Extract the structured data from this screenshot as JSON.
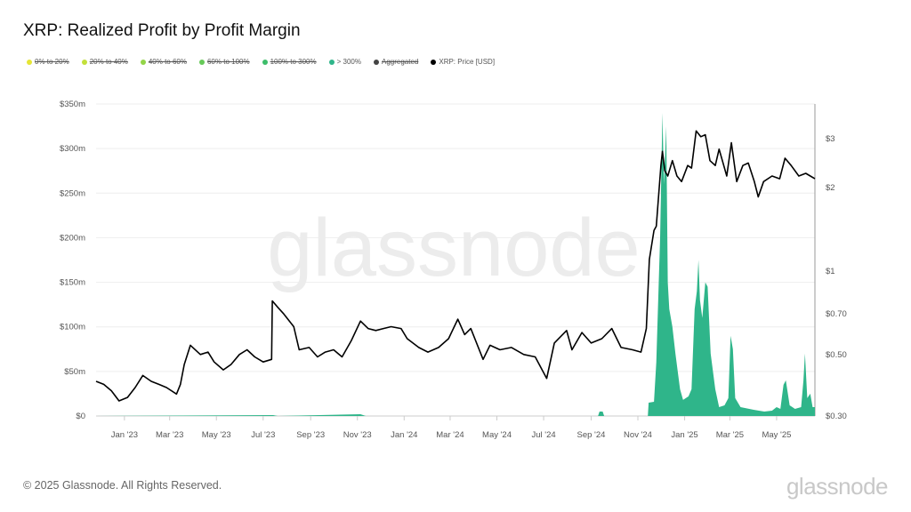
{
  "title": "XRP: Realized Profit by Profit Margin",
  "legend": [
    {
      "label": "0% to 20%",
      "color": "#e6e635",
      "active": false
    },
    {
      "label": "20% to 40%",
      "color": "#c3e03a",
      "active": false
    },
    {
      "label": "40% to 60%",
      "color": "#93d548",
      "active": false
    },
    {
      "label": "60% to 100%",
      "color": "#66c958",
      "active": false
    },
    {
      "label": "100% to 300%",
      "color": "#3dbd6a",
      "active": false
    },
    {
      "label": "> 300%",
      "color": "#2fb58a",
      "active": true
    },
    {
      "label": "Aggregated",
      "color": "#444444",
      "active": false
    },
    {
      "label": "XRP: Price [USD]",
      "color": "#000000",
      "active": true
    }
  ],
  "watermark": "glassnode",
  "footer": "© 2025 Glassnode. All Rights Reserved.",
  "brand": "glassnode",
  "chart_data": {
    "type": "area",
    "title": "XRP: Realized Profit by Profit Margin",
    "x_range": [
      "2022-11-25",
      "2025-06-20"
    ],
    "x_ticks": [
      "Jan '23",
      "Mar '23",
      "May '23",
      "Jul '23",
      "Sep '23",
      "Nov '23",
      "Jan '24",
      "Mar '24",
      "May '24",
      "Jul '24",
      "Sep '24",
      "Nov '24",
      "Jan '25",
      "Mar '25",
      "May '25"
    ],
    "x_tick_dates": [
      "2023-01-01",
      "2023-03-01",
      "2023-05-01",
      "2023-07-01",
      "2023-09-01",
      "2023-11-01",
      "2024-01-01",
      "2024-03-01",
      "2024-05-01",
      "2024-07-01",
      "2024-09-01",
      "2024-11-01",
      "2025-01-01",
      "2025-03-01",
      "2025-05-01"
    ],
    "y_left": {
      "range": [
        0,
        350
      ],
      "unit": "m USD",
      "ticks": [
        "$0",
        "$50m",
        "$100m",
        "$150m",
        "$200m",
        "$250m",
        "$300m",
        "$350m"
      ],
      "tick_values": [
        0,
        50,
        100,
        150,
        200,
        250,
        300,
        350
      ]
    },
    "y_right": {
      "scale": "log",
      "range": [
        0.3,
        3.6
      ],
      "ticks": [
        "$0.30",
        "$0.50",
        "$0.70",
        "$1",
        "$2",
        "$3"
      ],
      "tick_values": [
        0.3,
        0.5,
        0.7,
        1,
        2,
        3
      ]
    },
    "grid": true,
    "series": [
      {
        "name": "> 300%",
        "type": "area",
        "axis": "left",
        "color": "#2fb58a",
        "points": [
          [
            "2022-11-25",
            0
          ],
          [
            "2023-07-14",
            1
          ],
          [
            "2023-07-20",
            0
          ],
          [
            "2023-11-05",
            2
          ],
          [
            "2023-11-12",
            0
          ],
          [
            "2024-09-10",
            0
          ],
          [
            "2024-09-12",
            5
          ],
          [
            "2024-09-16",
            5
          ],
          [
            "2024-09-18",
            0
          ],
          [
            "2024-11-14",
            0
          ],
          [
            "2024-11-15",
            15
          ],
          [
            "2024-11-22",
            16
          ],
          [
            "2024-11-25",
            60
          ],
          [
            "2024-11-30",
            200
          ],
          [
            "2024-12-03",
            340
          ],
          [
            "2024-12-05",
            260
          ],
          [
            "2024-12-08",
            325
          ],
          [
            "2024-12-10",
            150
          ],
          [
            "2024-12-12",
            120
          ],
          [
            "2024-12-16",
            100
          ],
          [
            "2024-12-20",
            70
          ],
          [
            "2024-12-26",
            30
          ],
          [
            "2024-12-30",
            18
          ],
          [
            "2025-01-06",
            22
          ],
          [
            "2025-01-10",
            30
          ],
          [
            "2025-01-14",
            120
          ],
          [
            "2025-01-17",
            140
          ],
          [
            "2025-01-19",
            175
          ],
          [
            "2025-01-21",
            130
          ],
          [
            "2025-01-24",
            110
          ],
          [
            "2025-01-28",
            150
          ],
          [
            "2025-01-31",
            145
          ],
          [
            "2025-02-04",
            70
          ],
          [
            "2025-02-10",
            30
          ],
          [
            "2025-02-15",
            10
          ],
          [
            "2025-02-22",
            12
          ],
          [
            "2025-02-27",
            20
          ],
          [
            "2025-03-02",
            90
          ],
          [
            "2025-03-05",
            75
          ],
          [
            "2025-03-08",
            20
          ],
          [
            "2025-03-15",
            10
          ],
          [
            "2025-04-01",
            7
          ],
          [
            "2025-04-15",
            5
          ],
          [
            "2025-04-25",
            6
          ],
          [
            "2025-05-01",
            10
          ],
          [
            "2025-05-06",
            8
          ],
          [
            "2025-05-10",
            35
          ],
          [
            "2025-05-13",
            40
          ],
          [
            "2025-05-18",
            12
          ],
          [
            "2025-05-25",
            8
          ],
          [
            "2025-06-02",
            10
          ],
          [
            "2025-06-05",
            40
          ],
          [
            "2025-06-07",
            70
          ],
          [
            "2025-06-10",
            20
          ],
          [
            "2025-06-14",
            25
          ],
          [
            "2025-06-17",
            10
          ],
          [
            "2025-06-20",
            10
          ]
        ]
      },
      {
        "name": "XRP: Price [USD]",
        "type": "line",
        "axis": "right",
        "color": "#000000",
        "points": [
          [
            "2022-11-25",
            0.4
          ],
          [
            "2022-12-05",
            0.39
          ],
          [
            "2022-12-15",
            0.37
          ],
          [
            "2022-12-25",
            0.34
          ],
          [
            "2023-01-05",
            0.35
          ],
          [
            "2023-01-15",
            0.38
          ],
          [
            "2023-01-25",
            0.42
          ],
          [
            "2023-02-05",
            0.4
          ],
          [
            "2023-02-15",
            0.39
          ],
          [
            "2023-02-25",
            0.38
          ],
          [
            "2023-03-10",
            0.36
          ],
          [
            "2023-03-15",
            0.39
          ],
          [
            "2023-03-20",
            0.46
          ],
          [
            "2023-03-28",
            0.54
          ],
          [
            "2023-04-10",
            0.5
          ],
          [
            "2023-04-20",
            0.51
          ],
          [
            "2023-04-28",
            0.47
          ],
          [
            "2023-05-10",
            0.44
          ],
          [
            "2023-05-20",
            0.46
          ],
          [
            "2023-05-31",
            0.5
          ],
          [
            "2023-06-10",
            0.52
          ],
          [
            "2023-06-20",
            0.49
          ],
          [
            "2023-07-01",
            0.47
          ],
          [
            "2023-07-12",
            0.48
          ],
          [
            "2023-07-13",
            0.78
          ],
          [
            "2023-07-20",
            0.74
          ],
          [
            "2023-07-28",
            0.7
          ],
          [
            "2023-08-10",
            0.63
          ],
          [
            "2023-08-17",
            0.52
          ],
          [
            "2023-08-30",
            0.53
          ],
          [
            "2023-09-10",
            0.49
          ],
          [
            "2023-09-20",
            0.51
          ],
          [
            "2023-10-01",
            0.52
          ],
          [
            "2023-10-12",
            0.49
          ],
          [
            "2023-10-24",
            0.56
          ],
          [
            "2023-11-05",
            0.66
          ],
          [
            "2023-11-15",
            0.62
          ],
          [
            "2023-11-25",
            0.61
          ],
          [
            "2023-12-05",
            0.62
          ],
          [
            "2023-12-15",
            0.63
          ],
          [
            "2023-12-28",
            0.62
          ],
          [
            "2024-01-05",
            0.57
          ],
          [
            "2024-01-20",
            0.53
          ],
          [
            "2024-02-01",
            0.51
          ],
          [
            "2024-02-15",
            0.53
          ],
          [
            "2024-02-28",
            0.57
          ],
          [
            "2024-03-11",
            0.67
          ],
          [
            "2024-03-20",
            0.59
          ],
          [
            "2024-03-28",
            0.62
          ],
          [
            "2024-04-13",
            0.48
          ],
          [
            "2024-04-22",
            0.54
          ],
          [
            "2024-05-05",
            0.52
          ],
          [
            "2024-05-20",
            0.53
          ],
          [
            "2024-06-05",
            0.5
          ],
          [
            "2024-06-20",
            0.49
          ],
          [
            "2024-07-05",
            0.41
          ],
          [
            "2024-07-15",
            0.55
          ],
          [
            "2024-07-31",
            0.61
          ],
          [
            "2024-08-07",
            0.52
          ],
          [
            "2024-08-20",
            0.6
          ],
          [
            "2024-09-01",
            0.55
          ],
          [
            "2024-09-15",
            0.57
          ],
          [
            "2024-09-28",
            0.62
          ],
          [
            "2024-10-10",
            0.53
          ],
          [
            "2024-10-25",
            0.52
          ],
          [
            "2024-11-05",
            0.51
          ],
          [
            "2024-11-12",
            0.62
          ],
          [
            "2024-11-16",
            1.1
          ],
          [
            "2024-11-22",
            1.4
          ],
          [
            "2024-11-25",
            1.45
          ],
          [
            "2024-12-01",
            2.4
          ],
          [
            "2024-12-03",
            2.7
          ],
          [
            "2024-12-06",
            2.3
          ],
          [
            "2024-12-10",
            2.2
          ],
          [
            "2024-12-16",
            2.5
          ],
          [
            "2024-12-22",
            2.2
          ],
          [
            "2024-12-28",
            2.1
          ],
          [
            "2025-01-05",
            2.4
          ],
          [
            "2025-01-10",
            2.35
          ],
          [
            "2025-01-16",
            3.2
          ],
          [
            "2025-01-22",
            3.05
          ],
          [
            "2025-01-28",
            3.1
          ],
          [
            "2025-02-03",
            2.5
          ],
          [
            "2025-02-10",
            2.4
          ],
          [
            "2025-02-15",
            2.75
          ],
          [
            "2025-02-25",
            2.2
          ],
          [
            "2025-03-03",
            2.9
          ],
          [
            "2025-03-10",
            2.1
          ],
          [
            "2025-03-18",
            2.4
          ],
          [
            "2025-03-25",
            2.45
          ],
          [
            "2025-04-02",
            2.1
          ],
          [
            "2025-04-07",
            1.85
          ],
          [
            "2025-04-14",
            2.1
          ],
          [
            "2025-04-25",
            2.2
          ],
          [
            "2025-05-05",
            2.15
          ],
          [
            "2025-05-12",
            2.55
          ],
          [
            "2025-05-20",
            2.4
          ],
          [
            "2025-05-30",
            2.2
          ],
          [
            "2025-06-08",
            2.25
          ],
          [
            "2025-06-14",
            2.2
          ],
          [
            "2025-06-20",
            2.15
          ]
        ]
      }
    ]
  }
}
